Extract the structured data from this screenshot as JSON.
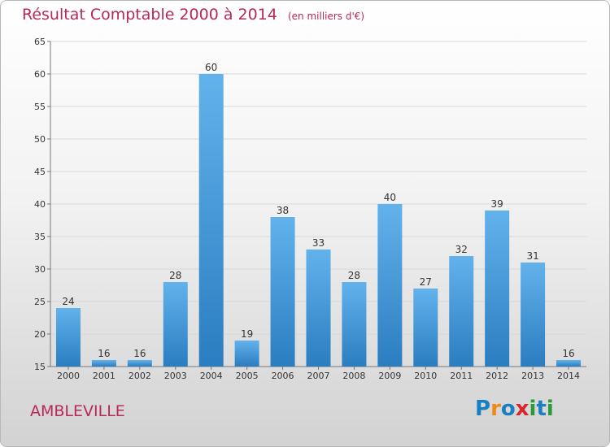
{
  "title": "Résultat Comptable 2000 à 2014",
  "unit": "(en milliers d'€)",
  "commune": "AMBLEVILLE",
  "logo": {
    "text": "Proxiti",
    "letters": [
      "P",
      "r",
      "o",
      "x",
      "i",
      "t",
      "i"
    ],
    "colors": [
      "#1a7fc0",
      "#f08a14",
      "#1a7fc0",
      "#d8262c",
      "#2c9a3a",
      "#1a7fc0",
      "#2c9a3a"
    ]
  },
  "colors": {
    "bar_light": "#62b2ec",
    "bar_dark": "#2a7dc0",
    "title": "#b8285a"
  },
  "chart_data": {
    "type": "bar",
    "categories": [
      "2000",
      "2001",
      "2002",
      "2003",
      "2004",
      "2005",
      "2006",
      "2007",
      "2008",
      "2009",
      "2010",
      "2011",
      "2012",
      "2013",
      "2014"
    ],
    "values": [
      24,
      16,
      16,
      28,
      60,
      19,
      38,
      33,
      28,
      40,
      27,
      32,
      39,
      31,
      16
    ],
    "ylim": [
      15,
      65
    ],
    "yticks": [
      15,
      20,
      25,
      30,
      35,
      40,
      45,
      50,
      55,
      60,
      65
    ],
    "grid": true,
    "title": "Résultat Comptable 2000 à 2014"
  }
}
